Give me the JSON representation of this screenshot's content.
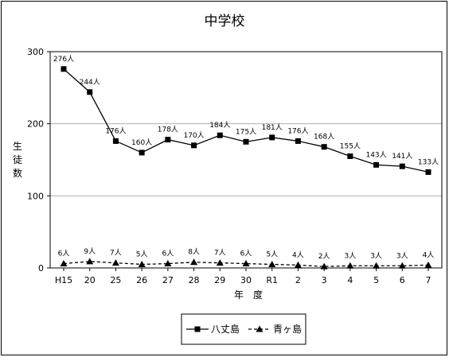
{
  "chart_data": {
    "type": "line",
    "title": "中学校",
    "xlabel": "年　度",
    "ylabel": "生徒数",
    "ylim": [
      0,
      300
    ],
    "yticks": [
      0,
      100,
      200,
      300
    ],
    "grid": true,
    "legend_position": "bottom",
    "categories": [
      "H15",
      "20",
      "25",
      "26",
      "27",
      "28",
      "29",
      "30",
      "R1",
      "2",
      "3",
      "4",
      "5",
      "6",
      "7"
    ],
    "series": [
      {
        "name": "八丈島",
        "marker": "square",
        "line": "solid",
        "color": "#000000",
        "values": [
          276,
          244,
          176,
          160,
          178,
          170,
          184,
          175,
          181,
          176,
          168,
          155,
          143,
          141,
          133
        ],
        "labels": [
          "276人",
          "244人",
          "176人",
          "160人",
          "178人",
          "170人",
          "184人",
          "175人",
          "181人",
          "176人",
          "168人",
          "155人",
          "143人",
          "141人",
          "133人"
        ]
      },
      {
        "name": "青ヶ島",
        "marker": "triangle",
        "line": "dashed",
        "color": "#000000",
        "values": [
          6,
          9,
          7,
          5,
          6,
          8,
          7,
          6,
          5,
          4,
          2,
          3,
          3,
          3,
          4
        ],
        "labels": [
          "6人",
          "9人",
          "7人",
          "5人",
          "6人",
          "8人",
          "7人",
          "6人",
          "5人",
          "4人",
          "2人",
          "3人",
          "3人",
          "3人",
          "4人"
        ]
      }
    ]
  }
}
